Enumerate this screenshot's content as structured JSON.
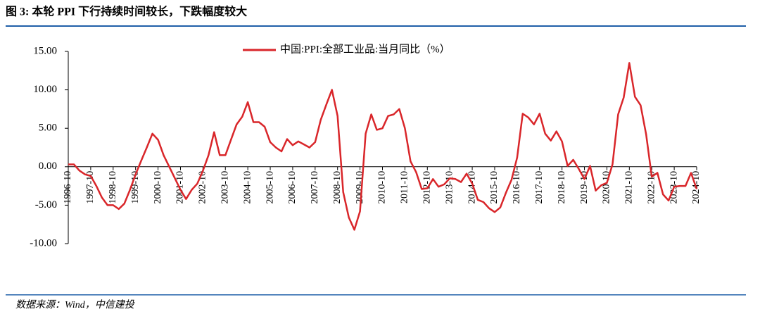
{
  "header": {
    "title": "图 3: 本轮  PPI 下行持续时间较长，下跌幅度较大"
  },
  "chart_data": {
    "type": "line",
    "x": [
      "1996-10",
      "1997-01",
      "1997-04",
      "1997-07",
      "1997-10",
      "1998-01",
      "1998-04",
      "1998-07",
      "1998-10",
      "1999-01",
      "1999-04",
      "1999-07",
      "1999-10",
      "2000-01",
      "2000-04",
      "2000-07",
      "2000-10",
      "2001-01",
      "2001-04",
      "2001-07",
      "2001-10",
      "2002-01",
      "2002-04",
      "2002-07",
      "2002-10",
      "2003-01",
      "2003-04",
      "2003-07",
      "2003-10",
      "2004-01",
      "2004-04",
      "2004-07",
      "2004-10",
      "2005-01",
      "2005-04",
      "2005-07",
      "2005-10",
      "2006-01",
      "2006-04",
      "2006-07",
      "2006-10",
      "2007-01",
      "2007-04",
      "2007-07",
      "2007-10",
      "2008-01",
      "2008-04",
      "2008-07",
      "2008-10",
      "2009-01",
      "2009-04",
      "2009-07",
      "2009-10",
      "2010-01",
      "2010-04",
      "2010-07",
      "2010-10",
      "2011-01",
      "2011-04",
      "2011-07",
      "2011-10",
      "2012-01",
      "2012-04",
      "2012-07",
      "2012-10",
      "2013-01",
      "2013-04",
      "2013-07",
      "2013-10",
      "2014-01",
      "2014-04",
      "2014-07",
      "2014-10",
      "2015-01",
      "2015-04",
      "2015-07",
      "2015-10",
      "2016-01",
      "2016-04",
      "2016-07",
      "2016-10",
      "2017-01",
      "2017-04",
      "2017-07",
      "2017-10",
      "2018-01",
      "2018-04",
      "2018-07",
      "2018-10",
      "2019-01",
      "2019-04",
      "2019-07",
      "2019-10",
      "2020-01",
      "2020-04",
      "2020-07",
      "2020-10",
      "2021-01",
      "2021-04",
      "2021-07",
      "2021-10",
      "2022-01",
      "2022-04",
      "2022-07",
      "2022-10",
      "2023-01",
      "2023-04",
      "2023-07",
      "2023-10",
      "2024-01",
      "2024-04",
      "2024-07",
      "2024-10"
    ],
    "series": [
      {
        "name": "中国:PPI:全部工业品:当月同比（%）",
        "color": "#d9262a",
        "values": [
          0.3,
          0.3,
          -0.5,
          -1.0,
          -1.2,
          -2.5,
          -4.0,
          -5.0,
          -5.0,
          -5.5,
          -4.8,
          -3.0,
          -1.0,
          0.8,
          2.5,
          4.3,
          3.5,
          1.5,
          0.0,
          -1.5,
          -3.0,
          -4.2,
          -3.0,
          -2.2,
          -0.5,
          1.5,
          4.5,
          1.5,
          1.5,
          3.5,
          5.5,
          6.5,
          8.4,
          5.8,
          5.8,
          5.2,
          3.2,
          2.5,
          2.0,
          3.6,
          2.8,
          3.3,
          2.9,
          2.5,
          3.2,
          6.1,
          8.1,
          10.0,
          6.6,
          -3.3,
          -6.6,
          -8.2,
          -5.8,
          4.3,
          6.8,
          4.8,
          5.0,
          6.6,
          6.8,
          7.5,
          5.0,
          0.7,
          -0.7,
          -2.9,
          -2.8,
          -1.6,
          -2.6,
          -2.3,
          -1.5,
          -1.6,
          -2.0,
          -0.9,
          -2.2,
          -4.3,
          -4.6,
          -5.4,
          -5.9,
          -5.3,
          -3.4,
          -1.7,
          1.2,
          6.9,
          6.4,
          5.5,
          6.9,
          4.3,
          3.4,
          4.6,
          3.3,
          0.1,
          0.9,
          -0.3,
          -1.6,
          0.1,
          -3.1,
          -2.4,
          -2.1,
          0.3,
          6.8,
          9.0,
          13.5,
          9.1,
          8.0,
          4.2,
          -1.3,
          -0.8,
          -3.6,
          -4.4,
          -2.6,
          -2.5,
          -2.5,
          -0.8,
          -2.9
        ]
      }
    ],
    "xlim": [
      "1996-10",
      "2024-10"
    ],
    "xticks": [
      "1996-10",
      "1997-10",
      "1998-10",
      "1999-10",
      "2000-10",
      "2001-10",
      "2002-10",
      "2003-10",
      "2004-10",
      "2005-10",
      "2006-10",
      "2007-10",
      "2008-10",
      "2009-10",
      "2010-10",
      "2011-10",
      "2012-10",
      "2013-10",
      "2014-10",
      "2015-10",
      "2016-10",
      "2017-10",
      "2018-10",
      "2019-10",
      "2020-10",
      "2021-10",
      "2022-10",
      "2023-10",
      "2024-10"
    ],
    "ylim": [
      -10,
      15
    ],
    "yticks": [
      {
        "value": 15,
        "label": "15.00"
      },
      {
        "value": 10,
        "label": "10.00"
      },
      {
        "value": 5,
        "label": "5.00"
      },
      {
        "value": 0,
        "label": "0.00"
      },
      {
        "value": -5,
        "label": "-5.00"
      },
      {
        "value": -10,
        "label": "-10.00"
      }
    ],
    "legend": "top"
  },
  "footer": {
    "source": "数据来源：Wind，中信建投"
  }
}
